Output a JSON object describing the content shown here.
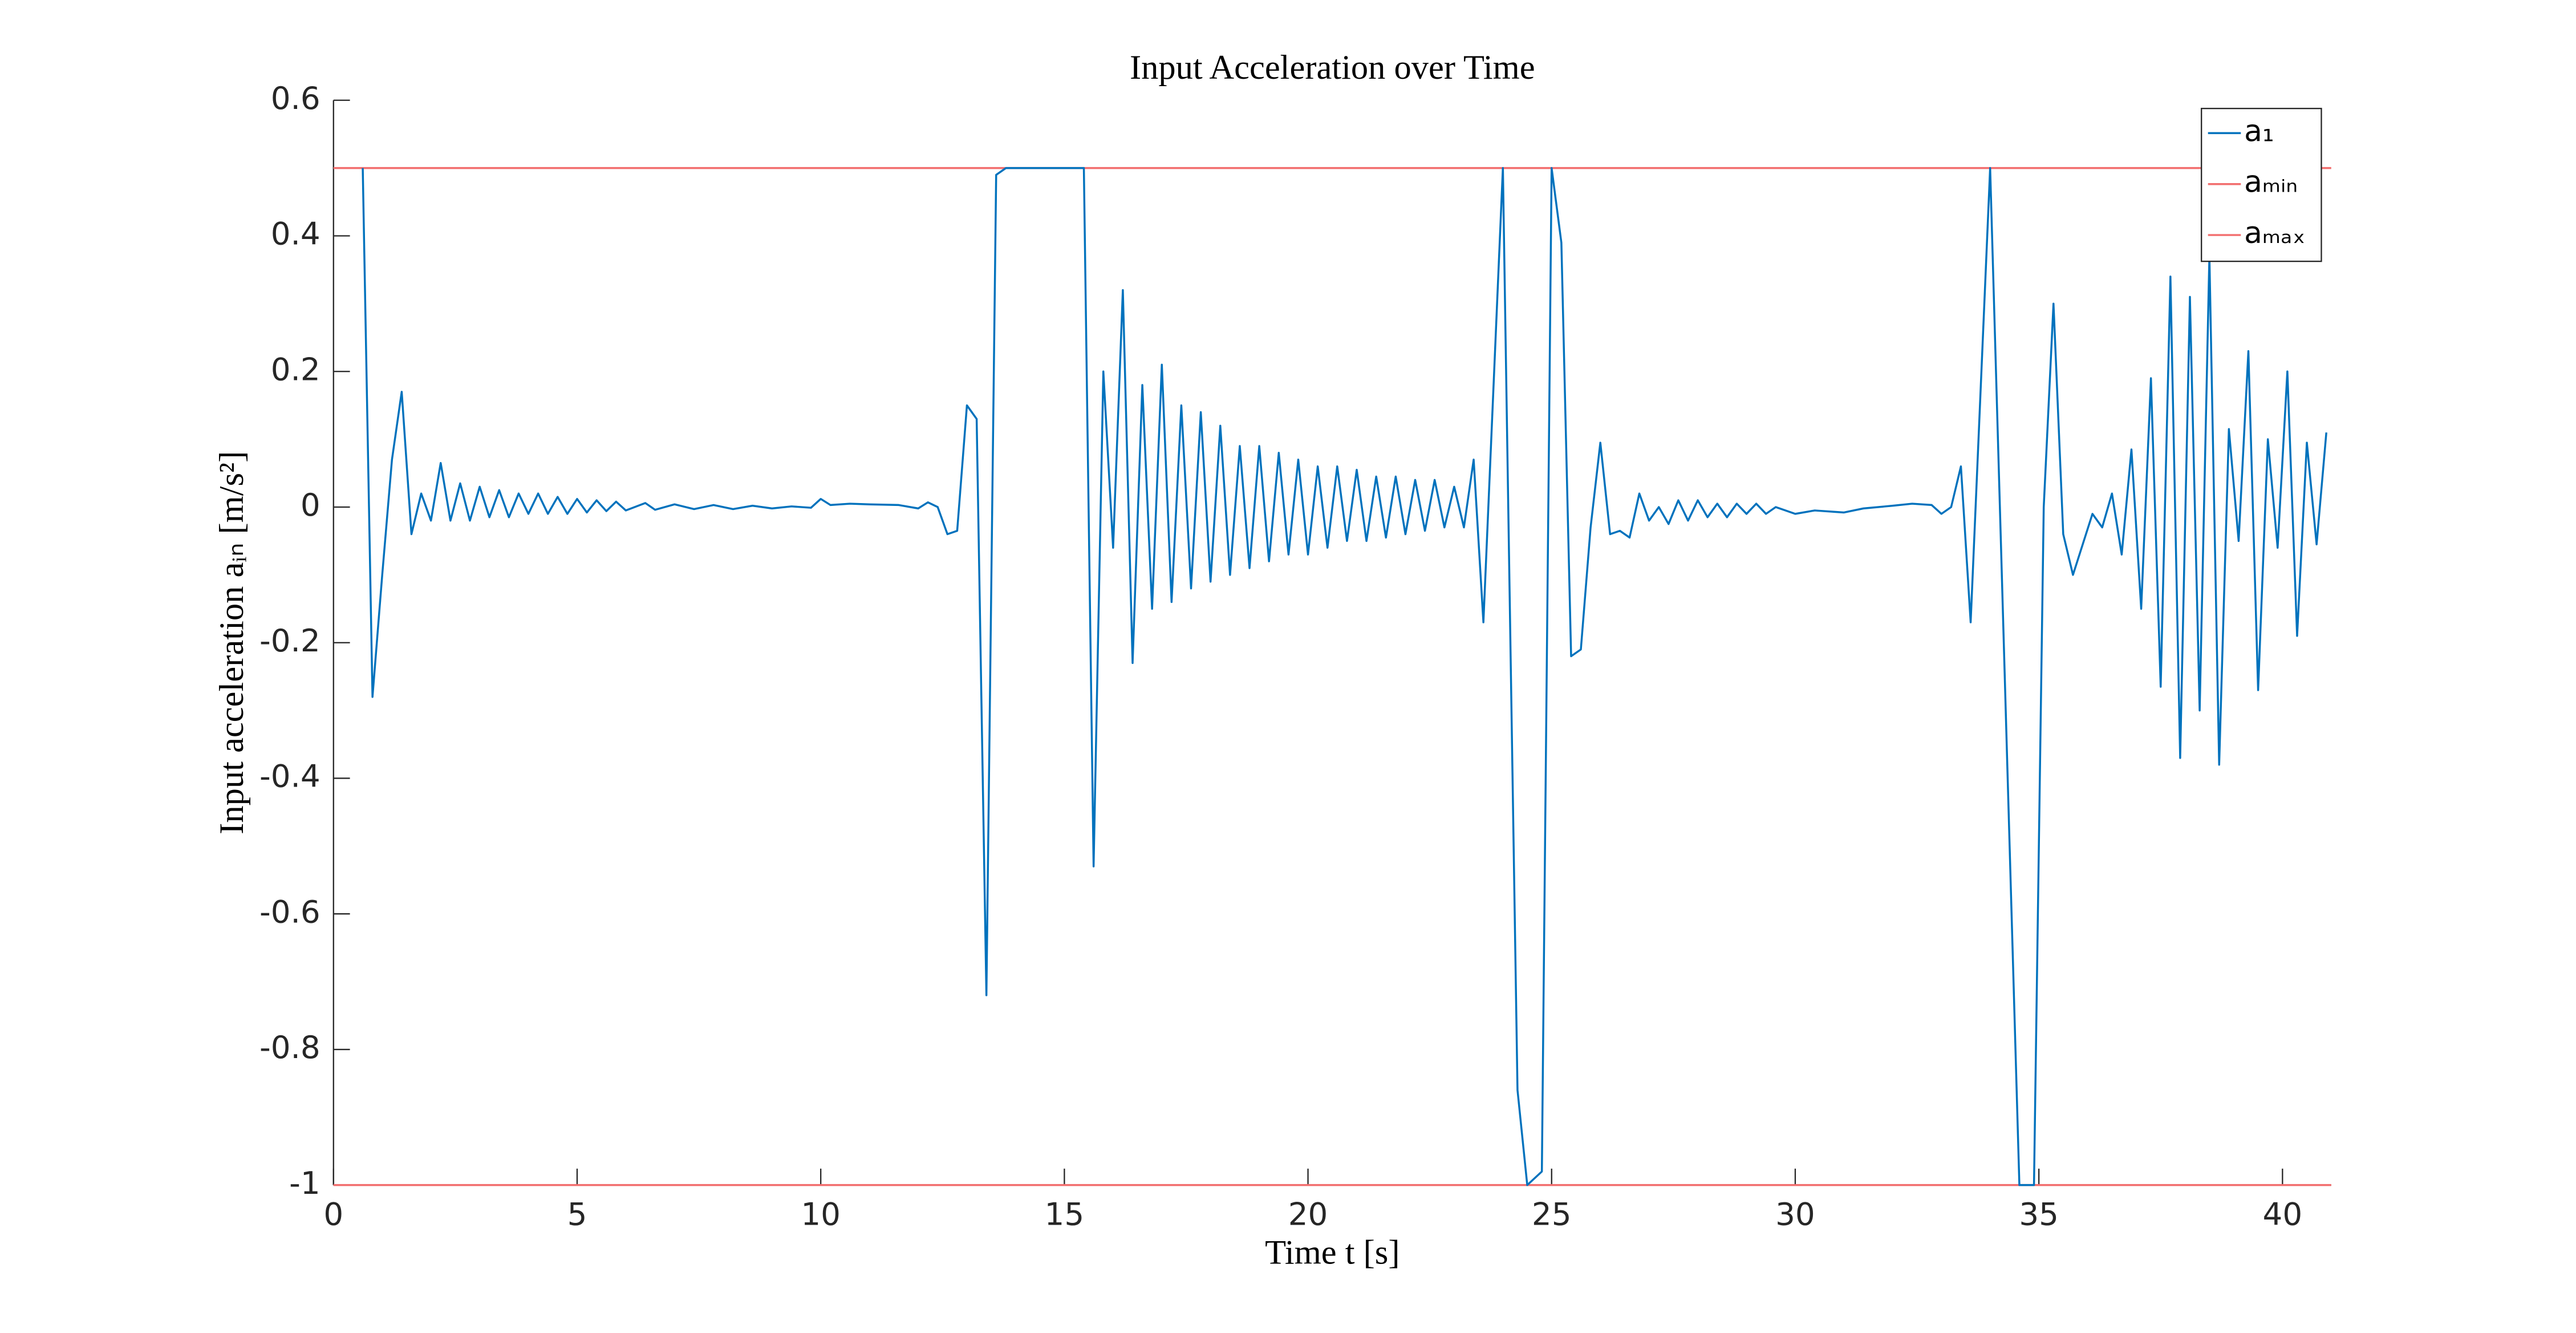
{
  "chart_data": {
    "type": "line",
    "title": "Input Acceleration over Time",
    "xlabel": "Time t [s]",
    "ylabel": "Input acceleration aᵢₙ [m/s²]",
    "xlim": [
      0,
      41
    ],
    "ylim": [
      -1,
      0.6
    ],
    "xticks": [
      0,
      5,
      10,
      15,
      20,
      25,
      30,
      35,
      40
    ],
    "yticks": [
      -1,
      -0.8,
      -0.6,
      -0.4,
      -0.2,
      0,
      0.2,
      0.4,
      0.6
    ],
    "legend": "northeast",
    "series": [
      {
        "name": "a₁",
        "color": "#0072bd",
        "x": [
          0.6,
          0.8,
          1.0,
          1.2,
          1.4,
          1.6,
          1.8,
          2.0,
          2.2,
          2.4,
          2.6,
          2.8,
          3.0,
          3.2,
          3.4,
          3.6,
          3.8,
          4.0,
          4.2,
          4.4,
          4.6,
          4.8,
          5.0,
          5.2,
          5.4,
          5.6,
          5.8,
          6.0,
          6.4,
          6.6,
          7.0,
          7.4,
          7.8,
          8.2,
          8.6,
          9.0,
          9.4,
          9.8,
          10.0,
          10.2,
          10.6,
          11.0,
          11.6,
          12.0,
          12.2,
          12.4,
          12.6,
          12.8,
          13.0,
          13.2,
          13.4,
          13.6,
          13.8,
          15.4,
          15.6,
          15.8,
          16.0,
          16.2,
          16.4,
          16.6,
          16.8,
          17.0,
          17.2,
          17.4,
          17.6,
          17.8,
          18.0,
          18.2,
          18.4,
          18.6,
          18.8,
          19.0,
          19.2,
          19.4,
          19.6,
          19.8,
          20.0,
          20.2,
          20.4,
          20.6,
          20.8,
          21.0,
          21.2,
          21.4,
          21.6,
          21.8,
          22.0,
          22.2,
          22.4,
          22.6,
          22.8,
          23.0,
          23.2,
          23.4,
          23.6,
          24.0,
          24.3,
          24.5,
          24.8,
          25.0,
          25.2,
          25.4,
          25.6,
          25.8,
          26.0,
          26.2,
          26.4,
          26.6,
          26.8,
          27.0,
          27.2,
          27.4,
          27.6,
          27.8,
          28.0,
          28.2,
          28.4,
          28.6,
          28.8,
          29.0,
          29.2,
          29.4,
          29.6,
          30.0,
          30.4,
          31.0,
          31.4,
          32.0,
          32.4,
          32.8,
          33.0,
          33.2,
          33.4,
          33.6,
          34.0,
          34.2,
          34.4,
          34.6,
          34.9,
          35.1,
          35.3,
          35.5,
          35.7,
          36.1,
          36.3,
          36.5,
          36.7,
          36.9,
          37.1,
          37.3,
          37.5,
          37.7,
          37.9,
          38.1,
          38.3,
          38.5,
          38.7,
          38.9,
          39.1,
          39.3,
          39.5,
          39.7,
          39.9,
          40.1,
          40.3,
          40.5,
          40.7,
          40.9
        ],
        "values": [
          0.5,
          -0.28,
          -0.1,
          0.07,
          0.17,
          -0.04,
          0.02,
          -0.02,
          0.065,
          -0.02,
          0.035,
          -0.02,
          0.03,
          -0.015,
          0.025,
          -0.015,
          0.02,
          -0.01,
          0.02,
          -0.01,
          0.015,
          -0.01,
          0.012,
          -0.008,
          0.01,
          -0.006,
          0.008,
          -0.005,
          0.006,
          -0.004,
          0.004,
          -0.003,
          0.003,
          -0.003,
          0.002,
          -0.002,
          0.001,
          -0.001,
          0.012,
          0.003,
          0.005,
          0.004,
          0.003,
          -0.002,
          0.007,
          0.0,
          -0.04,
          -0.035,
          0.15,
          0.13,
          -0.72,
          0.49,
          0.5,
          0.5,
          -0.53,
          0.2,
          -0.06,
          0.32,
          -0.23,
          0.18,
          -0.15,
          0.21,
          -0.14,
          0.15,
          -0.12,
          0.14,
          -0.11,
          0.12,
          -0.1,
          0.09,
          -0.09,
          0.09,
          -0.08,
          0.08,
          -0.07,
          0.07,
          -0.07,
          0.06,
          -0.06,
          0.06,
          -0.05,
          0.055,
          -0.05,
          0.045,
          -0.045,
          0.045,
          -0.04,
          0.04,
          -0.035,
          0.04,
          -0.03,
          0.03,
          -0.03,
          0.07,
          -0.17,
          0.5,
          -0.86,
          -1.0,
          -0.98,
          0.5,
          0.39,
          -0.22,
          -0.21,
          -0.03,
          0.095,
          -0.04,
          -0.035,
          -0.045,
          0.02,
          -0.02,
          0.0,
          -0.025,
          0.01,
          -0.02,
          0.01,
          -0.015,
          0.005,
          -0.015,
          0.005,
          -0.01,
          0.005,
          -0.01,
          0.0,
          -0.01,
          -0.005,
          -0.008,
          -0.002,
          0.002,
          0.005,
          0.003,
          -0.01,
          0.0,
          0.06,
          -0.17,
          0.5,
          0.0,
          -0.5,
          -1.0,
          -1.0,
          0.0,
          0.3,
          -0.04,
          -0.1,
          -0.01,
          -0.03,
          0.02,
          -0.07,
          0.085,
          -0.15,
          0.19,
          -0.265,
          0.34,
          -0.37,
          0.31,
          -0.3,
          0.37,
          -0.38,
          0.115,
          -0.05,
          0.23,
          -0.27,
          0.1,
          -0.06,
          0.2,
          -0.19,
          0.095,
          -0.055,
          0.11
        ]
      },
      {
        "name": "aₘᵢₙ",
        "color": "#f26d6d",
        "x": [
          0,
          41
        ],
        "values": [
          -1,
          -1
        ]
      },
      {
        "name": "aₘₐₓ",
        "color": "#f26d6d",
        "x": [
          0,
          41
        ],
        "values": [
          0.5,
          0.5
        ]
      }
    ]
  }
}
